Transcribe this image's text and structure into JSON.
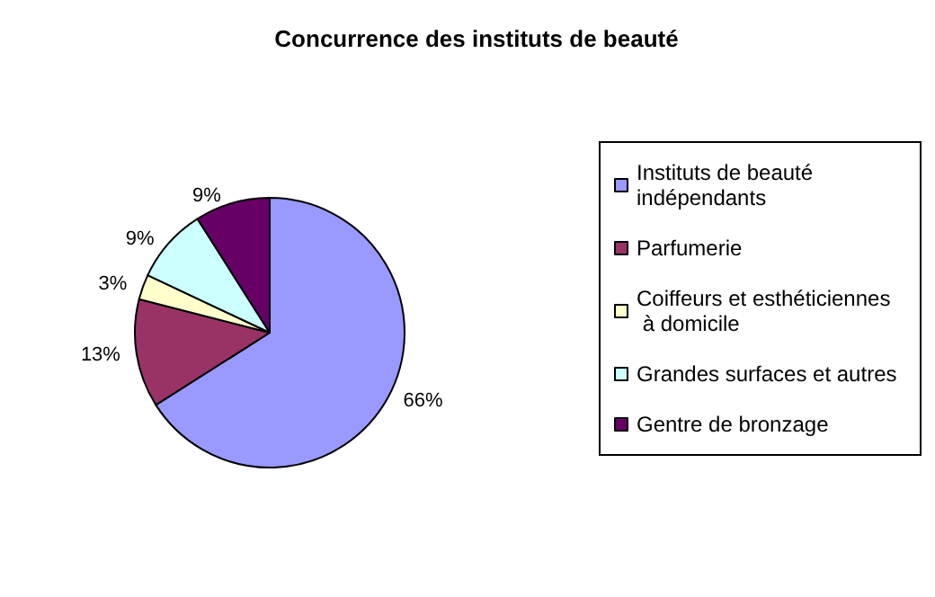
{
  "chart_data": {
    "type": "pie",
    "title": "Concurrence des instituts de beauté",
    "categories": [
      "Instituts de beauté indépendants",
      "Parfumerie",
      "Coiffeurs et esthéticiennes à domicile",
      "Grandes surfaces et autres",
      "Gentre de bronzage"
    ],
    "values": [
      66,
      13,
      3,
      9,
      9
    ],
    "value_labels": [
      "66%",
      "13%",
      "3%",
      "9%",
      "9%"
    ],
    "colors": [
      "#9999ff",
      "#993366",
      "#ffffcc",
      "#ccffff",
      "#660066"
    ],
    "legend": "right"
  }
}
